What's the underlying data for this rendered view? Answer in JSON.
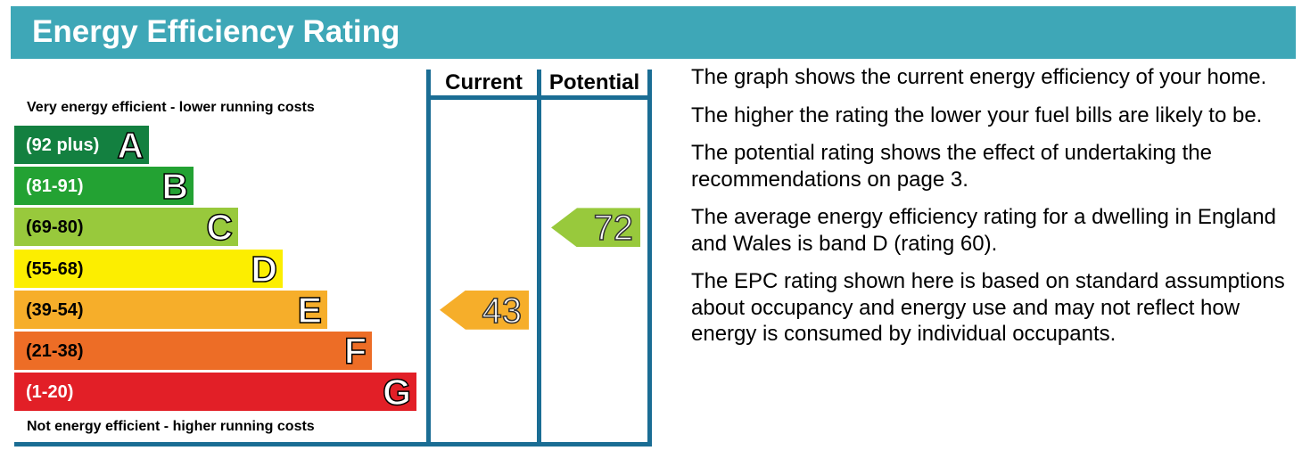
{
  "header": {
    "title": "Energy Efficiency Rating"
  },
  "captions": {
    "top": "Very energy efficient - lower running costs",
    "bottom": "Not energy efficient - higher running costs"
  },
  "columns": {
    "current": "Current",
    "potential": "Potential"
  },
  "chart_data": {
    "type": "bar",
    "bands": [
      {
        "letter": "A",
        "range": "(92 plus)",
        "color": "#138040",
        "text_color": "#ffffff"
      },
      {
        "letter": "B",
        "range": "(81-91)",
        "color": "#23a233",
        "text_color": "#ffffff"
      },
      {
        "letter": "C",
        "range": "(69-80)",
        "color": "#98c93c",
        "text_color": "#000000"
      },
      {
        "letter": "D",
        "range": "(55-68)",
        "color": "#fcee00",
        "text_color": "#000000"
      },
      {
        "letter": "E",
        "range": "(39-54)",
        "color": "#f6ae2a",
        "text_color": "#000000"
      },
      {
        "letter": "F",
        "range": "(21-38)",
        "color": "#ed6d26",
        "text_color": "#000000"
      },
      {
        "letter": "G",
        "range": "(1-20)",
        "color": "#e21f27",
        "text_color": "#ffffff"
      }
    ],
    "current": {
      "value": 43,
      "band": "E",
      "color": "#f6ae2a"
    },
    "potential": {
      "value": 72,
      "band": "C",
      "color": "#98c93c"
    }
  },
  "description": [
    "The graph shows the current energy efficiency of your home.",
    "The higher the rating the lower your fuel bills are likely to be.",
    "The potential rating shows the effect of undertaking the recommendations on page 3.",
    "The average energy efficiency rating for a dwelling in England and Wales is band D (rating 60).",
    "The EPC rating shown here is based on standard assumptions about occupancy and energy use and may not reflect how energy is consumed by individual occupants."
  ]
}
